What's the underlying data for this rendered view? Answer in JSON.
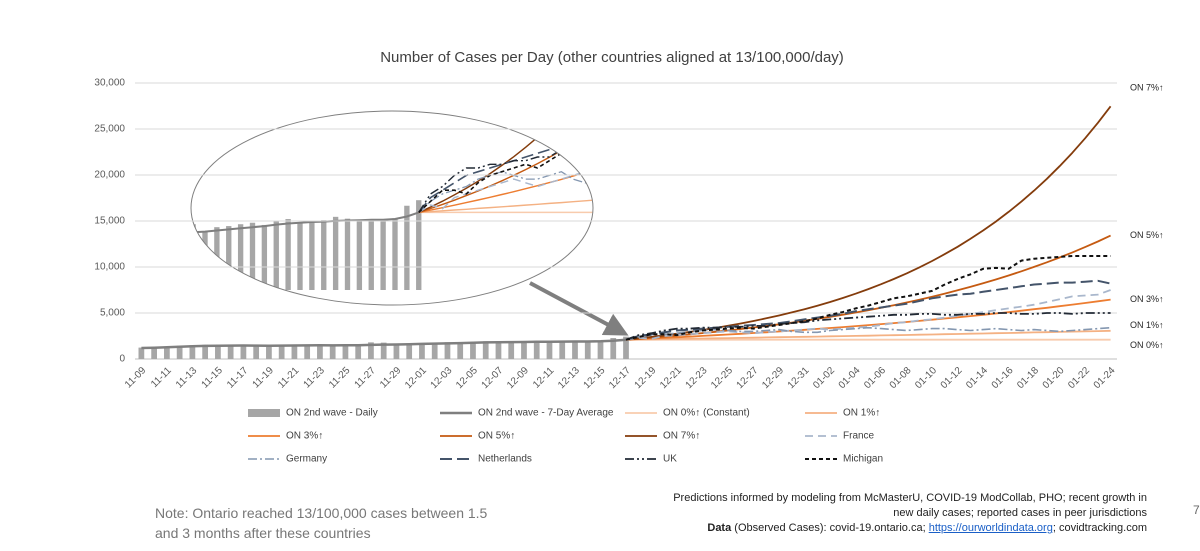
{
  "chart_data": {
    "type": "line",
    "title": "Number of Cases per Day (other countries aligned at 13/100,000/day)",
    "categories": [
      "11-09",
      null,
      "11-11",
      null,
      "11-13",
      null,
      "11-15",
      null,
      "11-17",
      null,
      "11-19",
      null,
      "11-21",
      null,
      "11-23",
      null,
      "11-25",
      null,
      "11-27",
      null,
      "11-29",
      null,
      "12-01",
      null,
      "12-03",
      null,
      "12-05",
      null,
      "12-07",
      null,
      "12-09",
      null,
      "12-11",
      null,
      "12-13",
      null,
      "12-15",
      null,
      "12-17",
      null,
      "12-19",
      null,
      "12-21",
      null,
      "12-23",
      null,
      "12-25",
      null,
      "12-27",
      null,
      "12-29",
      null,
      "12-31",
      null,
      "01-02",
      null,
      "01-04",
      null,
      "01-06",
      null,
      "01-08",
      null,
      "01-10",
      null,
      "01-12",
      null,
      "01-14",
      null,
      "01-16",
      null,
      "01-18",
      null,
      "01-20",
      null,
      "01-22",
      null,
      "01-24"
    ],
    "ylim": [
      0,
      30000
    ],
    "yticks": [
      0,
      {
        "value": 5000,
        "label": "5,000"
      },
      {
        "value": 10000,
        "label": "10,000"
      },
      {
        "value": 15000,
        "label": "15,000"
      },
      {
        "value": 20000,
        "label": "20,000"
      },
      {
        "value": 25000,
        "label": "25,000"
      },
      {
        "value": 30000,
        "label": "30,000"
      }
    ],
    "series": [
      {
        "name": "ON 2nd wave - Daily",
        "type": "bar",
        "color": "#a6a6a6",
        "values": [
          1240,
          1290,
          1360,
          1430,
          1500,
          1540,
          1480,
          1430,
          1490,
          1420,
          1410,
          1460,
          1580,
          1530,
          1590,
          1370,
          1480,
          1510,
          1810,
          1780,
          1590,
          1700,
          1730,
          1780,
          1820,
          1760,
          1860,
          1920,
          1830,
          1860,
          1890,
          1980,
          1930,
          1860,
          1870,
          1880,
          1940,
          2280,
          2430,
          null,
          null,
          null,
          null,
          null,
          null,
          null,
          null,
          null,
          null,
          null,
          null,
          null,
          null,
          null,
          null,
          null,
          null,
          null,
          null,
          null,
          null,
          null,
          null,
          null,
          null,
          null,
          null,
          null,
          null,
          null,
          null,
          null,
          null,
          null,
          null,
          null,
          null
        ]
      },
      {
        "name": "ON 2nd wave - 7-Day Average",
        "color": "#7f7f7f",
        "width": 2.5,
        "dash": "",
        "values": [
          1200,
          1230,
          1280,
          1330,
          1380,
          1420,
          1440,
          1460,
          1470,
          1460,
          1450,
          1460,
          1470,
          1480,
          1490,
          1480,
          1490,
          1500,
          1530,
          1560,
          1580,
          1610,
          1640,
          1670,
          1700,
          1730,
          1770,
          1800,
          1820,
          1840,
          1850,
          1870,
          1880,
          1890,
          1900,
          1900,
          1920,
          1990,
          2100,
          null,
          null,
          null,
          null,
          null,
          null,
          null,
          null,
          null,
          null,
          null,
          null,
          null,
          null,
          null,
          null,
          null,
          null,
          null,
          null,
          null,
          null,
          null,
          null,
          null,
          null,
          null,
          null,
          null,
          null,
          null,
          null,
          null,
          null,
          null,
          null,
          null,
          null
        ]
      },
      {
        "name": "ON 0%↑ (Constant)",
        "end_label": "ON 0%↑",
        "color": "#f8cbad",
        "width": 1.8,
        "dash": "",
        "values": [
          null,
          null,
          null,
          null,
          null,
          null,
          null,
          null,
          null,
          null,
          null,
          null,
          null,
          null,
          null,
          null,
          null,
          null,
          null,
          null,
          null,
          null,
          null,
          null,
          null,
          null,
          null,
          null,
          null,
          null,
          null,
          null,
          null,
          null,
          null,
          null,
          null,
          null,
          2100,
          2100,
          2100,
          2100,
          2100,
          2100,
          2100,
          2100,
          2100,
          2100,
          2100,
          2100,
          2100,
          2100,
          2100,
          2100,
          2100,
          2100,
          2100,
          2100,
          2100,
          2100,
          2100,
          2100,
          2100,
          2100,
          2100,
          2100,
          2100,
          2100,
          2100,
          2100,
          2100,
          2100,
          2100,
          2100,
          2100,
          2100,
          2100
        ]
      },
      {
        "name": "ON 1%↑",
        "end_label": "ON 1%↑",
        "color": "#f4b183",
        "width": 1.8,
        "dash": "",
        "values": [
          null,
          null,
          null,
          null,
          null,
          null,
          null,
          null,
          null,
          null,
          null,
          null,
          null,
          null,
          null,
          null,
          null,
          null,
          null,
          null,
          null,
          null,
          null,
          null,
          null,
          null,
          null,
          null,
          null,
          null,
          null,
          null,
          null,
          null,
          null,
          null,
          null,
          null,
          2100,
          2121,
          2142,
          2164,
          2185,
          2207,
          2229,
          2251,
          2274,
          2297,
          2320,
          2343,
          2366,
          2390,
          2414,
          2438,
          2462,
          2487,
          2512,
          2537,
          2562,
          2588,
          2614,
          2640,
          2666,
          2693,
          2720,
          2747,
          2775,
          2802,
          2830,
          2859,
          2887,
          2916,
          2945,
          2975,
          3004,
          3034,
          3065
        ]
      },
      {
        "name": "ON 3%↑",
        "end_label": "ON 3%↑",
        "color": "#ed7d31",
        "width": 1.8,
        "dash": "",
        "values": [
          null,
          null,
          null,
          null,
          null,
          null,
          null,
          null,
          null,
          null,
          null,
          null,
          null,
          null,
          null,
          null,
          null,
          null,
          null,
          null,
          null,
          null,
          null,
          null,
          null,
          null,
          null,
          null,
          null,
          null,
          null,
          null,
          null,
          null,
          null,
          null,
          null,
          null,
          2100,
          2163,
          2228,
          2295,
          2364,
          2435,
          2508,
          2583,
          2660,
          2740,
          2822,
          2907,
          2994,
          3084,
          3176,
          3272,
          3370,
          3471,
          3575,
          3682,
          3793,
          3907,
          4024,
          4145,
          4269,
          4397,
          4529,
          4665,
          4805,
          4949,
          5097,
          5250,
          5408,
          5570,
          5737,
          5909,
          6086,
          6269,
          6457
        ]
      },
      {
        "name": "ON 5%↑",
        "end_label": "ON 5%↑",
        "color": "#c55a11",
        "width": 1.8,
        "dash": "",
        "values": [
          null,
          null,
          null,
          null,
          null,
          null,
          null,
          null,
          null,
          null,
          null,
          null,
          null,
          null,
          null,
          null,
          null,
          null,
          null,
          null,
          null,
          null,
          null,
          null,
          null,
          null,
          null,
          null,
          null,
          null,
          null,
          null,
          null,
          null,
          null,
          null,
          null,
          null,
          2100,
          2205,
          2315,
          2431,
          2553,
          2680,
          2814,
          2955,
          3103,
          3258,
          3421,
          3592,
          3771,
          3960,
          4158,
          4366,
          4584,
          4813,
          5054,
          5307,
          5572,
          5851,
          6143,
          6450,
          6773,
          7111,
          7467,
          7840,
          8232,
          8644,
          9076,
          9530,
          10006,
          10507,
          11032,
          11584,
          12163,
          12771,
          13410
        ]
      },
      {
        "name": "ON 7%↑",
        "end_label": "ON 7%↑",
        "color": "#843c0c",
        "width": 1.8,
        "dash": "",
        "values": [
          null,
          null,
          null,
          null,
          null,
          null,
          null,
          null,
          null,
          null,
          null,
          null,
          null,
          null,
          null,
          null,
          null,
          null,
          null,
          null,
          null,
          null,
          null,
          null,
          null,
          null,
          null,
          null,
          null,
          null,
          null,
          null,
          null,
          null,
          null,
          null,
          null,
          null,
          2100,
          2247,
          2404,
          2573,
          2753,
          2945,
          3151,
          3372,
          3608,
          3861,
          4131,
          4420,
          4730,
          5061,
          5415,
          5794,
          6200,
          6633,
          7098,
          7595,
          8126,
          8695,
          9304,
          9955,
          10652,
          11398,
          12196,
          13049,
          13962,
          14940,
          15986,
          17105,
          18302,
          19583,
          20954,
          22421,
          23990,
          25670,
          27467
        ]
      },
      {
        "name": "France",
        "color": "#a9b7cc",
        "width": 1.8,
        "dash": "8,5",
        "values": [
          null,
          null,
          null,
          null,
          null,
          null,
          null,
          null,
          null,
          null,
          null,
          null,
          null,
          null,
          null,
          null,
          null,
          null,
          null,
          null,
          null,
          null,
          null,
          null,
          null,
          null,
          null,
          null,
          null,
          null,
          null,
          null,
          null,
          null,
          null,
          null,
          null,
          null,
          2100,
          2300,
          2200,
          2500,
          2600,
          2700,
          2800,
          2900,
          3000,
          2900,
          2800,
          2900,
          3000,
          3100,
          3200,
          3300,
          3200,
          3300,
          3400,
          3500,
          3700,
          3900,
          4000,
          4200,
          4300,
          4500,
          4700,
          4900,
          5100,
          5300,
          5500,
          5700,
          5900,
          6200,
          6500,
          6800,
          6900,
          7000,
          7500
        ]
      },
      {
        "name": "Germany",
        "color": "#8497b0",
        "width": 1.6,
        "dash": "9,3,2,3",
        "values": [
          null,
          null,
          null,
          null,
          null,
          null,
          null,
          null,
          null,
          null,
          null,
          null,
          null,
          null,
          null,
          null,
          null,
          null,
          null,
          null,
          null,
          null,
          null,
          null,
          null,
          null,
          null,
          null,
          null,
          null,
          null,
          null,
          null,
          null,
          null,
          null,
          null,
          null,
          2100,
          2400,
          2600,
          2700,
          2800,
          3000,
          3100,
          3200,
          3100,
          3000,
          3000,
          3100,
          3200,
          3000,
          2900,
          2900,
          3100,
          3200,
          3300,
          3400,
          3300,
          3200,
          3100,
          3200,
          3300,
          3300,
          3200,
          3100,
          3200,
          3300,
          3200,
          3100,
          3200,
          3100,
          3000,
          3100,
          3200,
          3300,
          3400
        ]
      },
      {
        "name": "Netherlands",
        "color": "#44546a",
        "width": 2,
        "dash": "12,5",
        "values": [
          null,
          null,
          null,
          null,
          null,
          null,
          null,
          null,
          null,
          null,
          null,
          null,
          null,
          null,
          null,
          null,
          null,
          null,
          null,
          null,
          null,
          null,
          null,
          null,
          null,
          null,
          null,
          null,
          null,
          null,
          null,
          null,
          null,
          null,
          null,
          null,
          null,
          null,
          2100,
          2500,
          2700,
          2900,
          3100,
          3200,
          3300,
          3400,
          3500,
          3600,
          3700,
          3800,
          3900,
          4100,
          4300,
          4500,
          4700,
          4900,
          5200,
          5400,
          5600,
          5800,
          6000,
          6300,
          6600,
          6800,
          7000,
          7100,
          7300,
          7500,
          7700,
          7900,
          8100,
          8200,
          8300,
          8300,
          8400,
          8500,
          8200
        ]
      },
      {
        "name": "UK",
        "color": "#222a35",
        "width": 1.8,
        "dash": "9,3,2,3,2,3",
        "values": [
          null,
          null,
          null,
          null,
          null,
          null,
          null,
          null,
          null,
          null,
          null,
          null,
          null,
          null,
          null,
          null,
          null,
          null,
          null,
          null,
          null,
          null,
          null,
          null,
          null,
          null,
          null,
          null,
          null,
          null,
          null,
          null,
          null,
          null,
          null,
          null,
          null,
          null,
          2100,
          2600,
          2800,
          3100,
          3300,
          3300,
          3400,
          3400,
          3500,
          3500,
          3600,
          3600,
          3800,
          3900,
          4000,
          4200,
          4300,
          4400,
          4500,
          4600,
          4700,
          4800,
          4800,
          4900,
          4900,
          4800,
          4800,
          4900,
          4900,
          5000,
          5000,
          4900,
          4900,
          5000,
          5000,
          4900,
          5000,
          5000,
          5000
        ]
      },
      {
        "name": "Michigan",
        "color": "#111111",
        "width": 2,
        "dash": "4,3",
        "values": [
          null,
          null,
          null,
          null,
          null,
          null,
          null,
          null,
          null,
          null,
          null,
          null,
          null,
          null,
          null,
          null,
          null,
          null,
          null,
          null,
          null,
          null,
          null,
          null,
          null,
          null,
          null,
          null,
          null,
          null,
          null,
          null,
          null,
          null,
          null,
          null,
          null,
          null,
          2100,
          2400,
          2700,
          2700,
          2600,
          2900,
          3100,
          3200,
          3300,
          3400,
          3300,
          3500,
          3700,
          3900,
          4100,
          4400,
          4800,
          5100,
          5500,
          5800,
          6200,
          6600,
          6800,
          7100,
          7400,
          8100,
          8700,
          9200,
          9800,
          9900,
          9800,
          10700,
          10900,
          11000,
          11100,
          11200,
          11200,
          11200,
          11200
        ]
      }
    ]
  },
  "note": [
    "Note:  Ontario reached 13/100,000 cases between 1.5",
    "and 3 months after these countries"
  ],
  "credits": {
    "line1": "Predictions informed by modeling from McMasterU, COVID-19 ModCollab, PHO; recent growth in",
    "line2": "new daily cases; reported cases in peer jurisdictions",
    "data_label": "Data",
    "data_text": " (Observed Cases): covid-19.ontario.ca; ",
    "link": "https://ourworldindata.org",
    "tail": "; covidtracking.com"
  },
  "page_number": "7"
}
